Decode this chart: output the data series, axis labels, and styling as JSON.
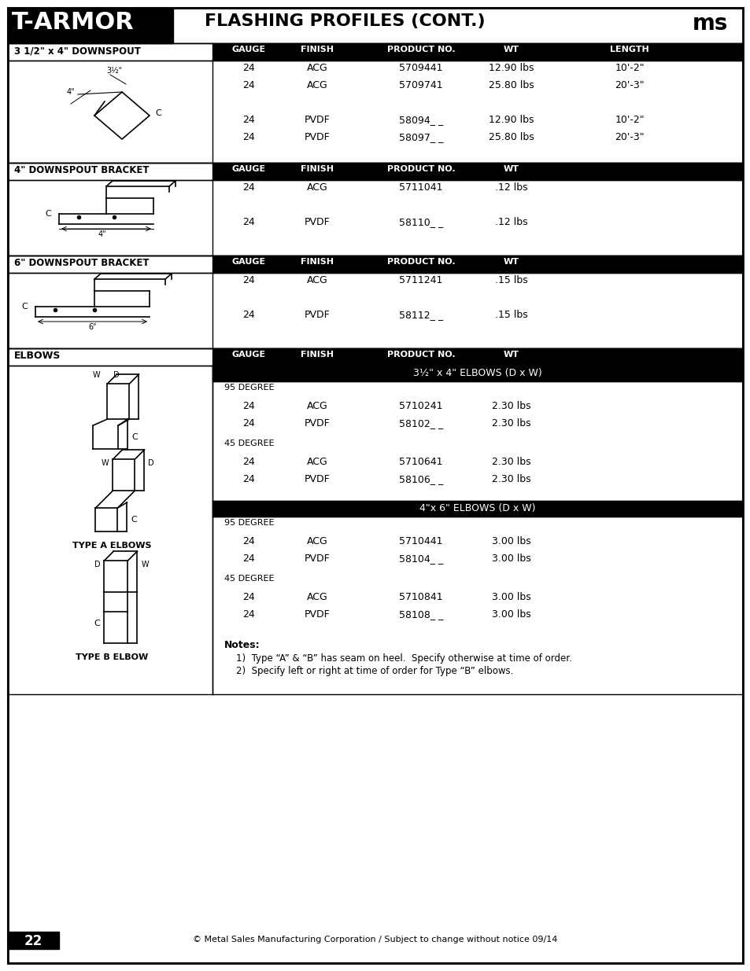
{
  "title_left": "T-ARMOR",
  "title_right": "FLASHING PROFILES (CONT.)",
  "page_number": "22",
  "footer_text": "© Metal Sales Manufacturing Corporation / Subject to change without notice 09/14",
  "col_labels_5": [
    "GAUGE",
    "FINISH",
    "PRODUCT NO.",
    "WT",
    "LENGTH"
  ],
  "col_labels_4": [
    "GAUGE",
    "FINISH",
    "PRODUCT NO.",
    "WT"
  ],
  "s1_label": "3 1/2\" x 4\" DOWNSPOUT",
  "s1_rows": [
    [
      "24",
      "ACG",
      "5709441",
      "12.90 lbs",
      "10'-2\""
    ],
    [
      "24",
      "ACG",
      "5709741",
      "25.80 lbs",
      "20'-3\""
    ],
    [
      "",
      "",
      "",
      "",
      ""
    ],
    [
      "24",
      "PVDF",
      "58094_ _",
      "12.90 lbs",
      "10'-2\""
    ],
    [
      "24",
      "PVDF",
      "58097_ _",
      "25.80 lbs",
      "20'-3\""
    ]
  ],
  "s2_label": "4\" DOWNSPOUT BRACKET",
  "s2_rows": [
    [
      "24",
      "ACG",
      "5711041",
      ".12 lbs"
    ],
    [
      "",
      "",
      "",
      ""
    ],
    [
      "24",
      "PVDF",
      "58110_ _",
      ".12 lbs"
    ]
  ],
  "s3_label": "6\" DOWNSPOUT BRACKET",
  "s3_rows": [
    [
      "24",
      "ACG",
      "5711241",
      ".15 lbs"
    ],
    [
      "",
      "",
      "",
      ""
    ],
    [
      "24",
      "PVDF",
      "58112_ _",
      ".15 lbs"
    ]
  ],
  "s4_label": "ELBOWS",
  "elbow_sub1_title": "3½\" x 4\" ELBOWS (D x W)",
  "elbow_sub2_title": "4\"x 6\" ELBOWS (D x W)",
  "elbow_sub1_groups": [
    {
      "degree": "95 DEGREE",
      "rows": [
        [
          "24",
          "ACG",
          "5710241",
          "2.30 lbs"
        ],
        [
          "24",
          "PVDF",
          "58102_ _",
          "2.30 lbs"
        ]
      ]
    },
    {
      "degree": "45 DEGREE",
      "rows": [
        [
          "24",
          "ACG",
          "5710641",
          "2.30 lbs"
        ],
        [
          "24",
          "PVDF",
          "58106_ _",
          "2.30 lbs"
        ]
      ]
    }
  ],
  "elbow_sub2_groups": [
    {
      "degree": "95 DEGREE",
      "rows": [
        [
          "24",
          "ACG",
          "5710441",
          "3.00 lbs"
        ],
        [
          "24",
          "PVDF",
          "58104_ _",
          "3.00 lbs"
        ]
      ]
    },
    {
      "degree": "45 DEGREE",
      "rows": [
        [
          "24",
          "ACG",
          "5710841",
          "3.00 lbs"
        ],
        [
          "24",
          "PVDF",
          "58108_ _",
          "3.00 lbs"
        ]
      ]
    }
  ],
  "notes_label": "Notes:",
  "notes": [
    "1)  Type “A” & “B” has seam on heel.  Specify otherwise at time of order.",
    "2)  Specify left or right at time of order for Type “B” elbows."
  ],
  "type_a_label": "TYPE A ELBOWS",
  "type_b_label": "TYPE B ELBOW"
}
